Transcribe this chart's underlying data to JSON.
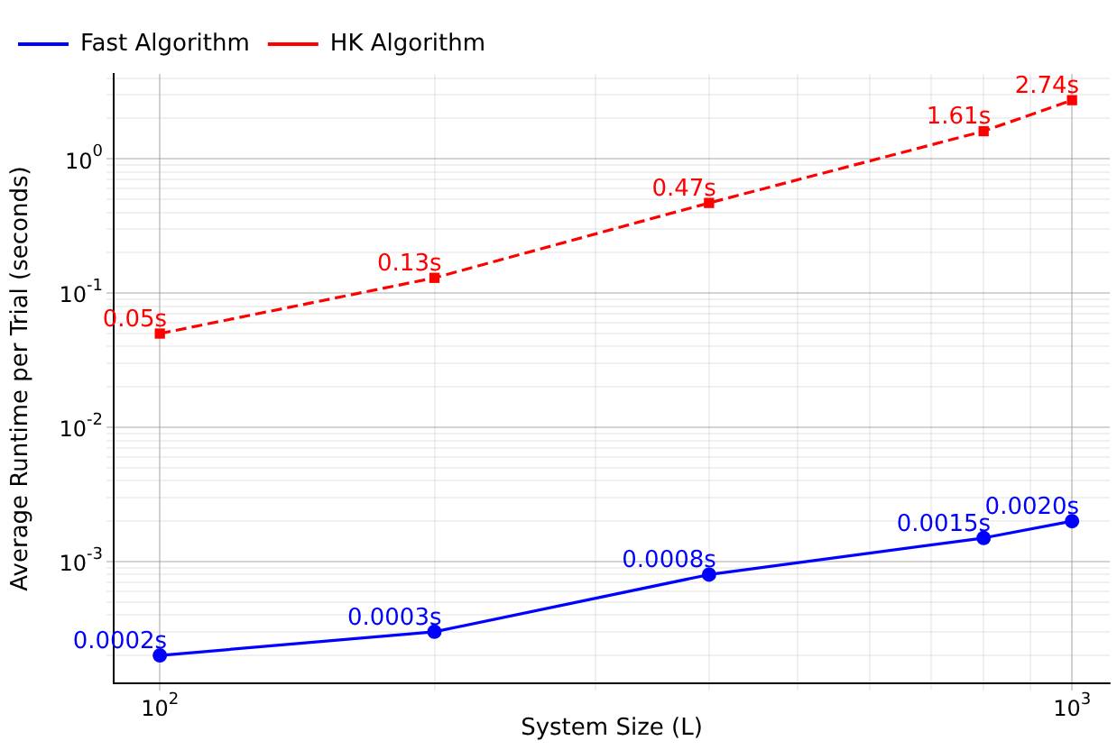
{
  "chart_data": {
    "type": "line",
    "xlabel": "System Size (L)",
    "ylabel": "Average Runtime per Trial (seconds)",
    "log": "xy",
    "grid": true,
    "legend": "top left",
    "x": [
      100,
      200,
      400,
      800,
      1000
    ],
    "series": [
      {
        "name": "Fast Algorithm",
        "color": "#0000ff",
        "marker": "circle",
        "line_style": "solid",
        "values": [
          0.0002,
          0.0003,
          0.0008,
          0.0015,
          0.002
        ],
        "value_labels": [
          "0.0002s",
          "0.0003s",
          "0.0008s",
          "0.0015s",
          "0.0020s"
        ]
      },
      {
        "name": "HK Algorithm",
        "color": "#ff0000",
        "marker": "square",
        "line_style": "dashed",
        "values": [
          0.05,
          0.13,
          0.47,
          1.61,
          2.74
        ],
        "value_labels": [
          "0.05s",
          "0.13s",
          "0.47s",
          "1.61s",
          "2.74s"
        ]
      }
    ],
    "xlim": [
      89,
      1100
    ],
    "ylim": [
      0.000124,
      4.3
    ],
    "xticks": [
      {
        "value": 100,
        "label": "10$^{2}$"
      },
      {
        "value": 200,
        "label": null
      },
      {
        "value": 300,
        "label": null
      },
      {
        "value": 400,
        "label": null
      },
      {
        "value": 500,
        "label": null
      },
      {
        "value": 600,
        "label": null
      },
      {
        "value": 700,
        "label": null
      },
      {
        "value": 800,
        "label": null
      },
      {
        "value": 900,
        "label": null
      },
      {
        "value": 1000,
        "label": "10$^{3}$"
      }
    ],
    "yticks": [
      {
        "value": 0.0002,
        "label": null
      },
      {
        "value": 0.0003,
        "label": null
      },
      {
        "value": 0.0004,
        "label": null
      },
      {
        "value": 0.0005,
        "label": null
      },
      {
        "value": 0.0006,
        "label": null
      },
      {
        "value": 0.0007,
        "label": null
      },
      {
        "value": 0.0008,
        "label": null
      },
      {
        "value": 0.0009,
        "label": null
      },
      {
        "value": 0.001,
        "label": "10$^{-3}$"
      },
      {
        "value": 0.002,
        "label": null
      },
      {
        "value": 0.003,
        "label": null
      },
      {
        "value": 0.004,
        "label": null
      },
      {
        "value": 0.005,
        "label": null
      },
      {
        "value": 0.006,
        "label": null
      },
      {
        "value": 0.007,
        "label": null
      },
      {
        "value": 0.008,
        "label": null
      },
      {
        "value": 0.009,
        "label": null
      },
      {
        "value": 0.01,
        "label": "10$^{-2}$"
      },
      {
        "value": 0.02,
        "label": null
      },
      {
        "value": 0.03,
        "label": null
      },
      {
        "value": 0.04,
        "label": null
      },
      {
        "value": 0.05,
        "label": null
      },
      {
        "value": 0.06,
        "label": null
      },
      {
        "value": 0.07,
        "label": null
      },
      {
        "value": 0.08,
        "label": null
      },
      {
        "value": 0.09,
        "label": null
      },
      {
        "value": 0.1,
        "label": "10$^{-1}$"
      },
      {
        "value": 0.2,
        "label": null
      },
      {
        "value": 0.3,
        "label": null
      },
      {
        "value": 0.4,
        "label": null
      },
      {
        "value": 0.5,
        "label": null
      },
      {
        "value": 0.6,
        "label": null
      },
      {
        "value": 0.7,
        "label": null
      },
      {
        "value": 0.8,
        "label": null
      },
      {
        "value": 0.9,
        "label": null
      },
      {
        "value": 1,
        "label": "10$^{0}$"
      },
      {
        "value": 2,
        "label": null
      },
      {
        "value": 3,
        "label": null
      },
      {
        "value": 4,
        "label": null
      }
    ]
  }
}
